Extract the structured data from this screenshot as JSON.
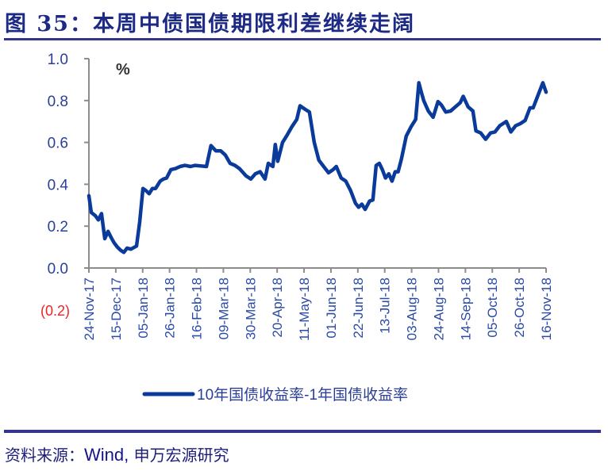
{
  "header": {
    "figure_label": "图 35：",
    "title": "本周中债国债期限利差继续走阔"
  },
  "footer": {
    "source_prefix": "资料来源：",
    "source_latin": "Wind,",
    "source_suffix": " 申万宏源研究"
  },
  "colors": {
    "line": "#0a3a9a",
    "axis": "#8c8c8c",
    "title": "#1c2a86",
    "rule": "#36378a",
    "tick_text": "#2a3f97",
    "negative_tick": "#e8262a"
  },
  "chart_data": {
    "type": "line",
    "title": "本周中债国债期限利差继续走阔",
    "unit_label": "%",
    "xlabel": "",
    "ylabel": "%",
    "ylim": [
      -0.2,
      1.0
    ],
    "y_ticks": [
      "1.0",
      "0.8",
      "0.6",
      "0.4",
      "0.2",
      "0.0",
      "(0.2)"
    ],
    "y_tick_values": [
      1.0,
      0.8,
      0.6,
      0.4,
      0.2,
      0.0,
      -0.2
    ],
    "x_tick_labels": [
      "24-Nov-17",
      "15-Dec-17",
      "05-Jan-18",
      "26-Jan-18",
      "16-Feb-18",
      "09-Mar-18",
      "30-Mar-18",
      "20-Apr-18",
      "11-May-18",
      "01-Jun-18",
      "22-Jun-18",
      "13-Jul-18",
      "03-Aug-18",
      "24-Aug-18",
      "14-Sep-18",
      "05-Oct-18",
      "26-Oct-18",
      "16-Nov-18"
    ],
    "grid": false,
    "legend_position": "bottom",
    "legend": [
      "10年国债收益率-1年国债收益率"
    ],
    "series": [
      {
        "name": "10年国债收益率-1年国债收益率",
        "x": [
          0,
          0.09,
          0.24,
          0.35,
          0.47,
          0.59,
          0.71,
          0.83,
          0.94,
          1.06,
          1.18,
          1.3,
          1.42,
          1.56,
          1.77,
          1.89,
          2.01,
          2.12,
          2.24,
          2.36,
          2.48,
          2.65,
          2.77,
          2.89,
          3.05,
          3.22,
          3.39,
          3.57,
          3.78,
          3.95,
          4.37,
          4.54,
          4.72,
          4.9,
          5.07,
          5.25,
          5.43,
          5.6,
          5.84,
          6.02,
          6.19,
          6.37,
          6.55,
          6.67,
          6.84,
          6.93,
          7.02,
          7.2,
          7.37,
          7.55,
          7.73,
          7.85,
          8.02,
          8.2,
          8.38,
          8.55,
          8.73,
          8.91,
          9.08,
          9.2,
          9.38,
          9.55,
          9.73,
          9.91,
          10.03,
          10.15,
          10.27,
          10.44,
          10.56,
          10.68,
          10.8,
          10.91,
          11.03,
          11.15,
          11.27,
          11.39,
          11.5,
          11.62,
          11.8,
          11.98,
          12.15,
          12.27,
          12.36,
          12.45,
          12.62,
          12.8,
          12.98,
          13.1,
          13.27,
          13.45,
          13.63,
          13.81,
          13.92,
          14.1,
          14.28,
          14.39,
          14.57,
          14.75,
          14.93,
          15.1,
          15.28,
          15.52,
          15.69,
          15.87,
          16.05,
          16.22,
          16.4,
          16.52,
          16.7,
          16.88,
          17.0
        ],
        "values": [
          0.345,
          0.265,
          0.25,
          0.23,
          0.26,
          0.14,
          0.175,
          0.145,
          0.12,
          0.1,
          0.085,
          0.075,
          0.095,
          0.09,
          0.105,
          0.22,
          0.38,
          0.37,
          0.355,
          0.38,
          0.38,
          0.415,
          0.425,
          0.43,
          0.47,
          0.475,
          0.485,
          0.49,
          0.485,
          0.49,
          0.485,
          0.585,
          0.56,
          0.56,
          0.54,
          0.5,
          0.49,
          0.475,
          0.44,
          0.425,
          0.45,
          0.46,
          0.425,
          0.5,
          0.485,
          0.59,
          0.51,
          0.6,
          0.635,
          0.675,
          0.71,
          0.775,
          0.76,
          0.745,
          0.6,
          0.515,
          0.485,
          0.455,
          0.47,
          0.485,
          0.43,
          0.415,
          0.37,
          0.31,
          0.29,
          0.305,
          0.28,
          0.32,
          0.325,
          0.49,
          0.5,
          0.47,
          0.43,
          0.45,
          0.415,
          0.46,
          0.46,
          0.52,
          0.63,
          0.675,
          0.71,
          0.885,
          0.84,
          0.8,
          0.75,
          0.72,
          0.795,
          0.78,
          0.745,
          0.75,
          0.77,
          0.79,
          0.82,
          0.77,
          0.75,
          0.655,
          0.645,
          0.615,
          0.645,
          0.65,
          0.68,
          0.7,
          0.65,
          0.68,
          0.69,
          0.705,
          0.765,
          0.765,
          0.825,
          0.885,
          0.84
        ]
      }
    ]
  }
}
